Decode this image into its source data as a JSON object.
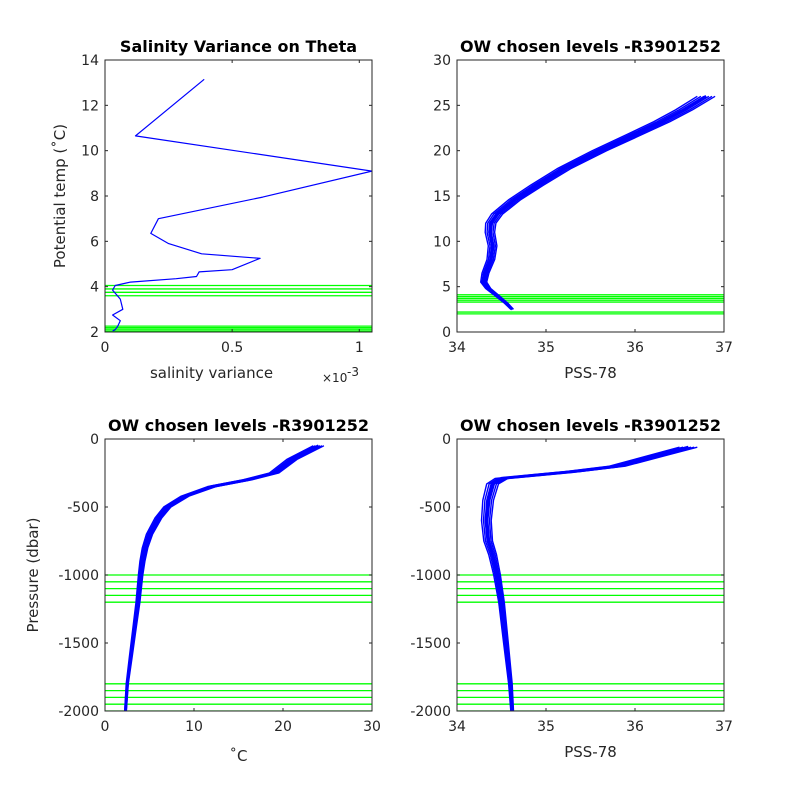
{
  "colors": {
    "data_line": "#0000ff",
    "level_line": "#00ff00",
    "axis": "#262626",
    "background": "#ffffff"
  },
  "chart_data": [
    {
      "id": "tl",
      "type": "line",
      "title": "Salinity Variance on Theta",
      "xlabel": "salinity variance",
      "x_exponent": "×10",
      "x_exponent_power": "-3",
      "ylabel": "Potential temp (˚C)",
      "xlim": [
        0,
        1.05
      ],
      "ylim": [
        2,
        14
      ],
      "xticks": [
        0,
        0.5,
        1
      ],
      "xtick_labels": [
        "0",
        "0.5",
        "1"
      ],
      "yticks": [
        2,
        4,
        6,
        8,
        10,
        12,
        14
      ],
      "ytick_labels": [
        "2",
        "4",
        "6",
        "8",
        "10",
        "12",
        "14"
      ],
      "series": [
        {
          "style": "line",
          "x": [
            0.39,
            0.12,
            1.05,
            0.62,
            0.21,
            0.18,
            0.25,
            0.38,
            0.55,
            0.61,
            0.5,
            0.37,
            0.36,
            0.28,
            0.1,
            0.04,
            0.03,
            0.06,
            0.07,
            0.03,
            0.06,
            0.05,
            0.04,
            0.03
          ],
          "y": [
            13.15,
            10.65,
            9.1,
            7.95,
            7.0,
            6.35,
            5.9,
            5.45,
            5.3,
            5.25,
            4.75,
            4.65,
            4.45,
            4.35,
            4.2,
            4.05,
            3.85,
            3.45,
            3.0,
            2.75,
            2.5,
            2.25,
            2.1,
            2.05
          ]
        }
      ],
      "hlines": [
        2.05,
        2.12,
        2.19,
        2.26,
        3.6,
        3.75,
        3.9,
        4.05
      ]
    },
    {
      "id": "tr",
      "type": "line",
      "title": "OW chosen levels -R3901252",
      "xlabel": "PSS-78",
      "ylabel": "",
      "xlim": [
        34,
        37
      ],
      "ylim": [
        0,
        30
      ],
      "xticks": [
        34,
        35,
        36,
        37
      ],
      "xtick_labels": [
        "34",
        "35",
        "36",
        "37"
      ],
      "yticks": [
        0,
        5,
        10,
        15,
        20,
        25,
        30
      ],
      "ytick_labels": [
        "0",
        "5",
        "10",
        "15",
        "20",
        "25",
        "30"
      ],
      "series": [
        {
          "style": "band",
          "band_halfwidth": 0.1,
          "x": [
            36.8,
            36.55,
            36.3,
            36.0,
            35.6,
            35.2,
            34.9,
            34.65,
            34.45,
            34.38,
            34.37,
            34.4,
            34.38,
            34.32,
            34.3,
            34.35,
            34.45,
            34.55,
            34.62
          ],
          "y": [
            26.0,
            24.5,
            23.2,
            21.8,
            20.0,
            18.0,
            16.2,
            14.6,
            13.0,
            12.0,
            11.0,
            9.5,
            8.0,
            6.5,
            5.5,
            4.8,
            4.0,
            3.2,
            2.5
          ]
        }
      ],
      "hlines": [
        3.3,
        3.5,
        3.7,
        3.9,
        4.1,
        2.0,
        2.2
      ]
    },
    {
      "id": "bl",
      "type": "line",
      "title": "OW chosen levels -R3901252",
      "xlabel": "˚C",
      "ylabel": "Pressure (dbar)",
      "xlim": [
        0,
        30
      ],
      "ylim": [
        -2000,
        0
      ],
      "xticks": [
        0,
        10,
        20,
        30
      ],
      "xtick_labels": [
        "0",
        "10",
        "20",
        "30"
      ],
      "yticks": [
        -2000,
        -1500,
        -1000,
        -500,
        0
      ],
      "ytick_labels": [
        "-2000",
        "-1500",
        "-1000",
        "-500",
        "0"
      ],
      "series": [
        {
          "style": "band",
          "band_halfwidth": 0.6,
          "x": [
            24.0,
            21.0,
            19.0,
            16.0,
            12.0,
            9.0,
            7.0,
            6.0,
            5.0,
            4.5,
            4.2,
            4.0,
            3.7,
            3.3,
            2.9,
            2.5,
            2.3
          ],
          "y": [
            -50,
            -150,
            -250,
            -300,
            -350,
            -420,
            -500,
            -580,
            -700,
            -800,
            -900,
            -1000,
            -1200,
            -1400,
            -1600,
            -1800,
            -2000
          ]
        }
      ],
      "hlines": [
        -1000,
        -1050,
        -1100,
        -1150,
        -1200,
        -1800,
        -1850,
        -1900,
        -1950,
        -2000
      ]
    },
    {
      "id": "br",
      "type": "line",
      "title": "OW chosen levels -R3901252",
      "xlabel": "PSS-78",
      "ylabel": "",
      "xlim": [
        34,
        37
      ],
      "ylim": [
        -2000,
        0
      ],
      "xticks": [
        34,
        35,
        36,
        37
      ],
      "xtick_labels": [
        "34",
        "35",
        "36",
        "37"
      ],
      "yticks": [
        -2000,
        -1500,
        -1000,
        -500,
        0
      ],
      "ytick_labels": [
        "-2000",
        "-1500",
        "-1000",
        "-500",
        "0"
      ],
      "series": [
        {
          "style": "band",
          "band_halfwidth": 0.1,
          "x": [
            36.6,
            36.2,
            35.8,
            35.3,
            34.9,
            34.5,
            34.4,
            34.35,
            34.33,
            34.35,
            34.4,
            34.45,
            34.5,
            34.55,
            34.6,
            34.62
          ],
          "y": [
            -60,
            -130,
            -200,
            -240,
            -265,
            -290,
            -330,
            -450,
            -600,
            -750,
            -850,
            -1000,
            -1200,
            -1500,
            -1800,
            -2000
          ]
        }
      ],
      "hlines": [
        -1000,
        -1050,
        -1100,
        -1150,
        -1200,
        -1800,
        -1850,
        -1900,
        -1950,
        -2000
      ]
    }
  ]
}
